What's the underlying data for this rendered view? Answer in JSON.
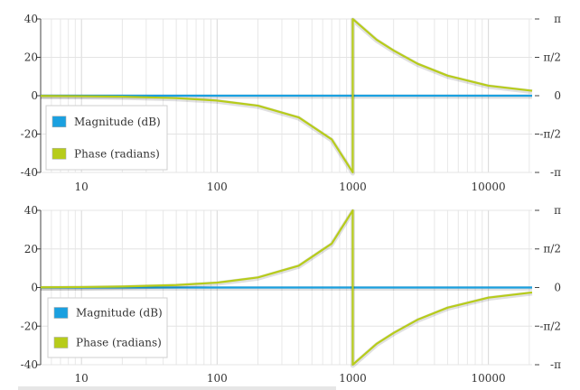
{
  "chart_data": [
    {
      "type": "line",
      "x_scale": "log",
      "xlim": [
        5,
        21000
      ],
      "x_ticks": [
        10,
        100,
        1000,
        10000
      ],
      "x_tick_labels": [
        "10",
        "100",
        "1000",
        "10000"
      ],
      "ylim_left": [
        -40,
        40
      ],
      "y_ticks_left": [
        40,
        20,
        0,
        -20,
        -40
      ],
      "y_tick_labels_left": [
        "40",
        "20",
        "0",
        "-20",
        "-40"
      ],
      "ylim_right": [
        -3.14159,
        3.14159
      ],
      "y_ticks_right": [
        3.14159,
        1.5708,
        0,
        -1.5708,
        -3.14159
      ],
      "y_tick_labels_right": [
        "π",
        "π/2",
        "0",
        "-π/2",
        "-π"
      ],
      "grid": true,
      "legend_position": "bottom-left",
      "legend": [
        "Magnitude (dB)",
        "Phase (radians)"
      ],
      "colors": {
        "magnitude": "#1aa0e0",
        "phase": "#b7cc1a"
      },
      "series": [
        {
          "name": "Magnitude (dB)",
          "axis": "left",
          "x": [
            5,
            21000
          ],
          "y": [
            0,
            0
          ]
        },
        {
          "name": "Phase (radians)",
          "axis": "right",
          "x": [
            5,
            10,
            20,
            50,
            100,
            200,
            400,
            700,
            1000,
            1000,
            1500,
            2000,
            3000,
            5000,
            10000,
            21000
          ],
          "y": [
            -0.01,
            -0.02,
            -0.04,
            -0.1,
            -0.2,
            -0.41,
            -0.89,
            -1.79,
            -3.14,
            3.14,
            2.29,
            1.85,
            1.31,
            0.82,
            0.41,
            0.2
          ]
        }
      ]
    },
    {
      "type": "line",
      "x_scale": "log",
      "xlim": [
        5,
        21000
      ],
      "x_ticks": [
        10,
        100,
        1000,
        10000
      ],
      "x_tick_labels": [
        "10",
        "100",
        "1000",
        "10000"
      ],
      "ylim_left": [
        -40,
        40
      ],
      "y_ticks_left": [
        40,
        20,
        0,
        -20,
        -40
      ],
      "y_tick_labels_left": [
        "40",
        "20",
        "0",
        "-20",
        "-40"
      ],
      "ylim_right": [
        -3.14159,
        3.14159
      ],
      "y_ticks_right": [
        3.14159,
        1.5708,
        0,
        -1.5708,
        -3.14159
      ],
      "y_tick_labels_right": [
        "π",
        "π/2",
        "0",
        "-π/2",
        "-π"
      ],
      "grid": true,
      "legend_position": "bottom-left",
      "legend": [
        "Magnitude (dB)",
        "Phase (radians)"
      ],
      "colors": {
        "magnitude": "#1aa0e0",
        "phase": "#b7cc1a"
      },
      "series": [
        {
          "name": "Magnitude (dB)",
          "axis": "left",
          "x": [
            5,
            21000
          ],
          "y": [
            0,
            0
          ]
        },
        {
          "name": "Phase (radians)",
          "axis": "right",
          "x": [
            5,
            10,
            20,
            50,
            100,
            200,
            400,
            700,
            1000,
            1000,
            1500,
            2000,
            3000,
            5000,
            10000,
            21000
          ],
          "y": [
            0.01,
            0.02,
            0.04,
            0.1,
            0.2,
            0.41,
            0.89,
            1.79,
            3.14,
            -3.14,
            -2.29,
            -1.85,
            -1.31,
            -0.82,
            -0.41,
            -0.2
          ]
        }
      ]
    }
  ]
}
